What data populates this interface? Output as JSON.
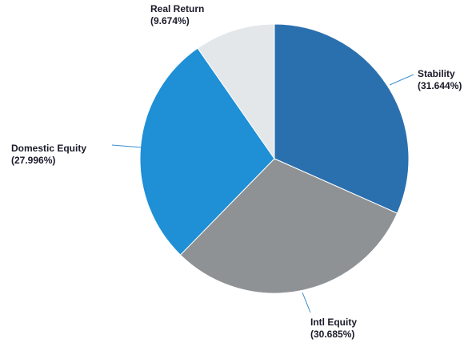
{
  "chart_data": {
    "type": "pie",
    "categories": [
      "Stability",
      "Intl Equity",
      "Domestic Equity",
      "Real Return"
    ],
    "values": [
      31.644,
      30.685,
      27.996,
      9.674
    ],
    "value_labels": [
      "(31.644%)",
      "(30.685%)",
      "(27.996%)",
      "(9.674%)"
    ],
    "colors": [
      "#2b70ae",
      "#8f9295",
      "#1f8fd6",
      "#e3e7ea"
    ]
  }
}
